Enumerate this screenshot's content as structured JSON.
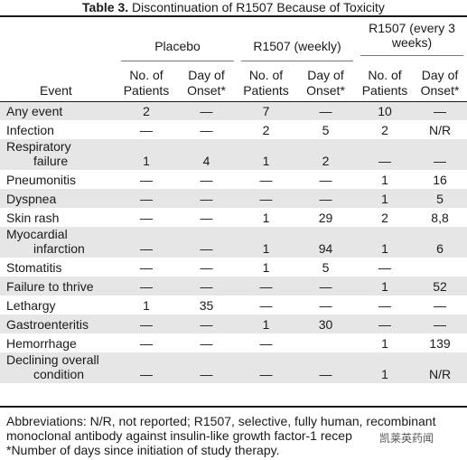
{
  "title": {
    "label": "Table 3.",
    "text": "Discontinuation of R1507 Because of Toxicity"
  },
  "groups": {
    "placebo": "Placebo",
    "weekly": "R1507 (weekly)",
    "every3": "R1507 (every 3 weeks)"
  },
  "subheaders": {
    "event": "Event",
    "patients": "No. of Patients",
    "onset": "Day of Onset*"
  },
  "rows": [
    {
      "event": "Any event",
      "cells": [
        "2",
        "—",
        "7",
        "—",
        "10",
        "—"
      ],
      "shaded": true
    },
    {
      "event": "Infection",
      "cells": [
        "—",
        "—",
        "2",
        "5",
        "2",
        "N/R"
      ],
      "shaded": false
    },
    {
      "event": "Respiratory failure",
      "line1": "Respiratory",
      "line2": "failure",
      "cells": [
        "1",
        "4",
        "1",
        "2",
        "—",
        "—"
      ],
      "shaded": true
    },
    {
      "event": "Pneumonitis",
      "cells": [
        "—",
        "—",
        "—",
        "—",
        "1",
        "16"
      ],
      "shaded": false
    },
    {
      "event": "Dyspnea",
      "cells": [
        "—",
        "—",
        "—",
        "—",
        "1",
        "5"
      ],
      "shaded": true
    },
    {
      "event": "Skin rash",
      "cells": [
        "—",
        "—",
        "1",
        "29",
        "2",
        "8,8"
      ],
      "shaded": false
    },
    {
      "event": "Myocardial infarction",
      "line1": "Myocardial",
      "line2": "infarction",
      "cells": [
        "—",
        "—",
        "1",
        "94",
        "1",
        "6"
      ],
      "shaded": true
    },
    {
      "event": "Stomatitis",
      "cells": [
        "—",
        "—",
        "1",
        "5",
        "—",
        ""
      ],
      "shaded": false
    },
    {
      "event": "Failure to thrive",
      "cells": [
        "—",
        "—",
        "—",
        "—",
        "1",
        "52"
      ],
      "shaded": true
    },
    {
      "event": "Lethargy",
      "cells": [
        "1",
        "35",
        "—",
        "—",
        "—",
        "—"
      ],
      "shaded": false
    },
    {
      "event": "Gastroenteritis",
      "cells": [
        "—",
        "—",
        "1",
        "30",
        "—",
        "—"
      ],
      "shaded": true
    },
    {
      "event": "Hemorrhage",
      "cells": [
        "—",
        "—",
        "—",
        "",
        "1",
        "139"
      ],
      "shaded": false
    },
    {
      "event": "Declining overall condition",
      "line1": "Declining overall",
      "line2": "condition",
      "cells": [
        "—",
        "—",
        "—",
        "—",
        "1",
        "N/R"
      ],
      "shaded": true
    }
  ],
  "footnotes": {
    "line1": "Abbreviations: N/R, not reported; R1507, selective, fully human, recombinant",
    "line2": "monoclonal antibody against insulin-like growth factor-1 recep",
    "line3": "*Number of days since initiation of study therapy."
  },
  "watermark": "凯莱英药闻"
}
